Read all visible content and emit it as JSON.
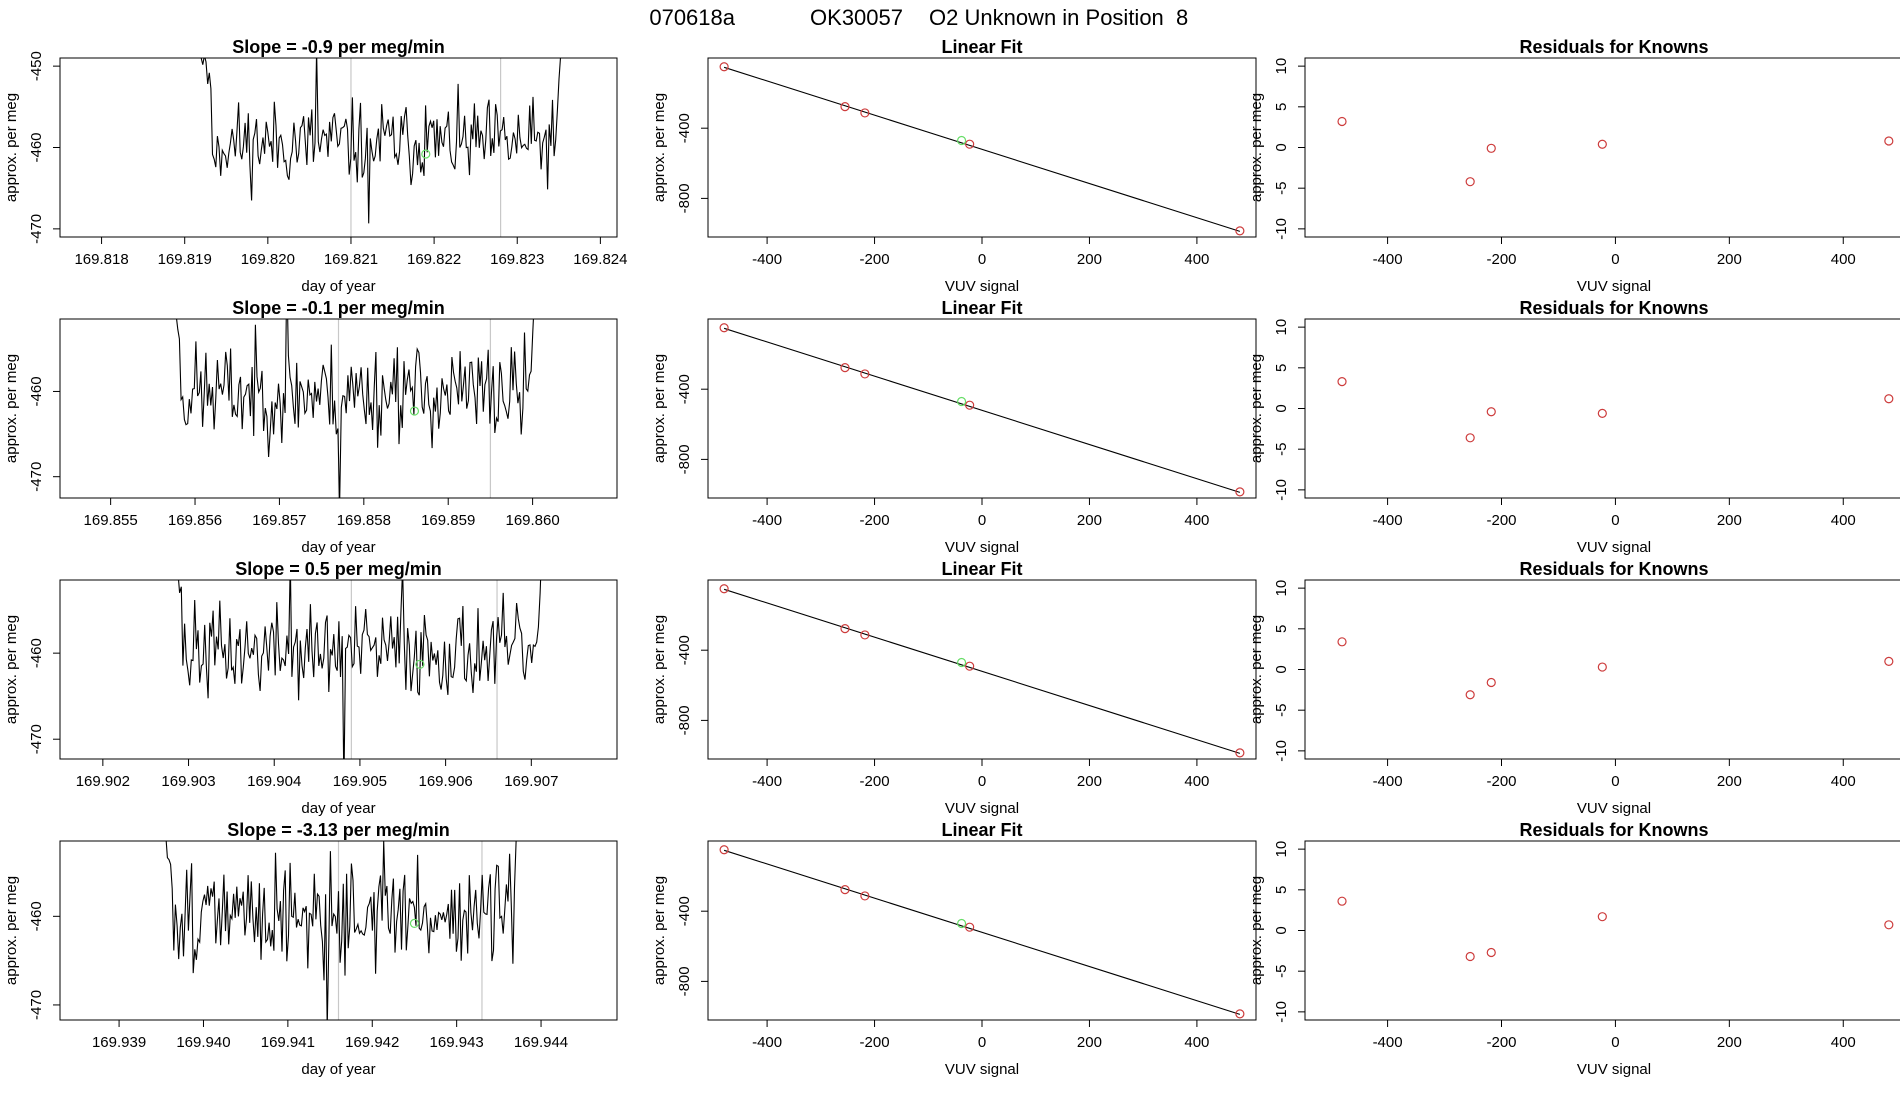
{
  "header": {
    "run_id": "070618a",
    "tank_id": "OK30057",
    "description": "O2 Unknown in Position  8"
  },
  "colors": {
    "trace": "#000000",
    "knowns": "#cd3c3c",
    "unknown": "#66dd66",
    "vline": "#c8c8c8"
  },
  "chart_data": [
    {
      "type": "line",
      "row": 0,
      "panel": "time-series",
      "title": "Slope =  -0.9  per meg/min",
      "xlabel": "day of year",
      "ylabel": "approx. per meg",
      "xlim": [
        169.8175,
        169.8242
      ],
      "ylim": [
        -471,
        -449
      ],
      "xticks": [
        169.818,
        169.819,
        169.82,
        169.821,
        169.822,
        169.823,
        169.824
      ],
      "xtick_labels": [
        "169.818",
        "169.819",
        "169.820",
        "169.821",
        "169.822",
        "169.823",
        "169.824"
      ],
      "yticks": [
        -450,
        -460,
        -470
      ],
      "ytick_labels": [
        "-450",
        "-460",
        "-470"
      ],
      "x_start": 169.8191,
      "x_end": 169.8236,
      "mean": -459.5,
      "noise": 3.2,
      "seed": 11,
      "vlines": [
        169.821,
        169.8228
      ],
      "unknown_point": {
        "x": 169.8219,
        "y": -460.8
      }
    },
    {
      "type": "line",
      "row": 1,
      "panel": "time-series",
      "title": "Slope =  -0.1  per meg/min",
      "xlabel": "day of year",
      "ylabel": "approx. per meg",
      "xlim": [
        169.8544,
        169.861
      ],
      "ylim": [
        -472.5,
        -451.5
      ],
      "xticks": [
        169.855,
        169.856,
        169.857,
        169.858,
        169.859,
        169.86
      ],
      "xtick_labels": [
        "169.855",
        "169.856",
        "169.857",
        "169.858",
        "169.859",
        "169.860"
      ],
      "yticks": [
        -460,
        -470
      ],
      "ytick_labels": [
        "-460",
        "-470"
      ],
      "x_start": 169.8556,
      "x_end": 169.8601,
      "mean": -460.2,
      "noise": 3.6,
      "seed": 23,
      "vlines": [
        169.8577,
        169.8595
      ],
      "unknown_point": {
        "x": 169.8586,
        "y": -462.3
      }
    },
    {
      "type": "line",
      "row": 2,
      "panel": "time-series",
      "title": "Slope =  0.5  per meg/min",
      "xlabel": "day of year",
      "ylabel": "approx. per meg",
      "xlim": [
        169.9015,
        169.908
      ],
      "ylim": [
        -472.3,
        -451.5
      ],
      "xticks": [
        169.902,
        169.903,
        169.904,
        169.905,
        169.906,
        169.907
      ],
      "xtick_labels": [
        "169.902",
        "169.903",
        "169.904",
        "169.905",
        "169.906",
        "169.907"
      ],
      "yticks": [
        -460,
        -470
      ],
      "ytick_labels": [
        "-460",
        "-470"
      ],
      "x_start": 169.9027,
      "x_end": 169.9072,
      "mean": -459.8,
      "noise": 3.3,
      "seed": 37,
      "vlines": [
        169.9049,
        169.9066
      ],
      "unknown_point": {
        "x": 169.9057,
        "y": -461.3
      }
    },
    {
      "type": "line",
      "row": 3,
      "panel": "time-series",
      "title": "Slope =  -3.13  per meg/min",
      "xlabel": "day of year",
      "ylabel": "approx. per meg",
      "xlim": [
        169.9383,
        169.9449
      ],
      "ylim": [
        -471.7,
        -451.5
      ],
      "xticks": [
        169.939,
        169.94,
        169.941,
        169.942,
        169.943,
        169.944
      ],
      "xtick_labels": [
        "169.939",
        "169.940",
        "169.941",
        "169.942",
        "169.943",
        "169.944"
      ],
      "yticks": [
        -460,
        -470
      ],
      "ytick_labels": [
        "-460",
        "-470"
      ],
      "x_start": 169.9394,
      "x_end": 169.9438,
      "mean": -459.8,
      "noise": 3.6,
      "seed": 51,
      "vlines": [
        169.9416,
        169.9433
      ],
      "unknown_point": {
        "x": 169.9425,
        "y": -460.8
      }
    },
    {
      "type": "scatter",
      "row": 0,
      "panel": "linear-fit",
      "title": "Linear Fit",
      "xlabel": "VUV signal",
      "ylabel": "approx. per meg",
      "xlim": [
        -510,
        510
      ],
      "ylim": [
        -1020,
        0
      ],
      "xticks": [
        -400,
        -200,
        0,
        200,
        400
      ],
      "xtick_labels": [
        "-400",
        "-200",
        "0",
        "200",
        "400"
      ],
      "yticks": [
        -400,
        -800
      ],
      "ytick_labels": [
        "-400",
        "-800"
      ],
      "fit_line": {
        "x": [
          -480,
          480
        ],
        "y": [
          -53,
          -988
        ]
      },
      "knowns": {
        "x": [
          -480,
          -255,
          -218,
          -23,
          480
        ],
        "y": [
          -50,
          -277,
          -313,
          -491,
          -985
        ]
      },
      "unknown": {
        "x": -38,
        "y": -470
      }
    },
    {
      "type": "scatter",
      "row": 1,
      "panel": "linear-fit",
      "title": "Linear Fit",
      "xlabel": "VUV signal",
      "ylabel": "approx. per meg",
      "xlim": [
        -510,
        510
      ],
      "ylim": [
        -1020,
        0
      ],
      "xticks": [
        -400,
        -200,
        0,
        200,
        400
      ],
      "xtick_labels": [
        "-400",
        "-200",
        "0",
        "200",
        "400"
      ],
      "yticks": [
        -400,
        -800
      ],
      "ytick_labels": [
        "-400",
        "-800"
      ],
      "fit_line": {
        "x": [
          -480,
          480
        ],
        "y": [
          -53,
          -988
        ]
      },
      "knowns": {
        "x": [
          -480,
          -255,
          -218,
          -23,
          480
        ],
        "y": [
          -50,
          -277,
          -313,
          -491,
          -985
        ]
      },
      "unknown": {
        "x": -38,
        "y": -470
      }
    },
    {
      "type": "scatter",
      "row": 2,
      "panel": "linear-fit",
      "title": "Linear Fit",
      "xlabel": "VUV signal",
      "ylabel": "approx. per meg",
      "xlim": [
        -510,
        510
      ],
      "ylim": [
        -1020,
        0
      ],
      "xticks": [
        -400,
        -200,
        0,
        200,
        400
      ],
      "xtick_labels": [
        "-400",
        "-200",
        "0",
        "200",
        "400"
      ],
      "yticks": [
        -400,
        -800
      ],
      "ytick_labels": [
        "-400",
        "-800"
      ],
      "fit_line": {
        "x": [
          -480,
          480
        ],
        "y": [
          -53,
          -988
        ]
      },
      "knowns": {
        "x": [
          -480,
          -255,
          -218,
          -23,
          480
        ],
        "y": [
          -50,
          -277,
          -313,
          -491,
          -985
        ]
      },
      "unknown": {
        "x": -38,
        "y": -470
      }
    },
    {
      "type": "scatter",
      "row": 3,
      "panel": "linear-fit",
      "title": "Linear Fit",
      "xlabel": "VUV signal",
      "ylabel": "approx. per meg",
      "xlim": [
        -510,
        510
      ],
      "ylim": [
        -1020,
        0
      ],
      "xticks": [
        -400,
        -200,
        0,
        200,
        400
      ],
      "xtick_labels": [
        "-400",
        "-200",
        "0",
        "200",
        "400"
      ],
      "yticks": [
        -400,
        -800
      ],
      "ytick_labels": [
        "-400",
        "-800"
      ],
      "fit_line": {
        "x": [
          -480,
          480
        ],
        "y": [
          -53,
          -988
        ]
      },
      "knowns": {
        "x": [
          -480,
          -255,
          -218,
          -23,
          480
        ],
        "y": [
          -50,
          -277,
          -313,
          -491,
          -985
        ]
      },
      "unknown": {
        "x": -38,
        "y": -470
      }
    },
    {
      "type": "scatter",
      "row": 0,
      "panel": "residuals",
      "title": "Residuals for Knowns",
      "xlabel": "VUV signal",
      "ylabel": "approx. per meg",
      "xlim": [
        -545,
        540
      ],
      "ylim": [
        -11,
        11
      ],
      "xticks": [
        -400,
        -200,
        0,
        200,
        400
      ],
      "xtick_labels": [
        "-400",
        "-200",
        "0",
        "200",
        "400"
      ],
      "yticks": [
        10,
        5,
        0,
        -5,
        -10
      ],
      "ytick_labels": [
        "10",
        "5",
        "0",
        "-5",
        "-10"
      ],
      "x": [
        -480,
        -255,
        -218,
        -23,
        480
      ],
      "y": [
        3.2,
        -4.2,
        -0.1,
        0.4,
        0.8
      ]
    },
    {
      "type": "scatter",
      "row": 1,
      "panel": "residuals",
      "title": "Residuals for Knowns",
      "xlabel": "VUV signal",
      "ylabel": "approx. per meg",
      "xlim": [
        -545,
        540
      ],
      "ylim": [
        -11,
        11
      ],
      "xticks": [
        -400,
        -200,
        0,
        200,
        400
      ],
      "xtick_labels": [
        "-400",
        "-200",
        "0",
        "200",
        "400"
      ],
      "yticks": [
        10,
        5,
        0,
        -5,
        -10
      ],
      "ytick_labels": [
        "10",
        "5",
        "0",
        "-5",
        "-10"
      ],
      "x": [
        -480,
        -255,
        -218,
        -23,
        480
      ],
      "y": [
        3.3,
        -3.6,
        -0.4,
        -0.6,
        1.2
      ]
    },
    {
      "type": "scatter",
      "row": 2,
      "panel": "residuals",
      "title": "Residuals for Knowns",
      "xlabel": "VUV signal",
      "ylabel": "approx. per meg",
      "xlim": [
        -545,
        540
      ],
      "ylim": [
        -11,
        11
      ],
      "xticks": [
        -400,
        -200,
        0,
        200,
        400
      ],
      "xtick_labels": [
        "-400",
        "-200",
        "0",
        "200",
        "400"
      ],
      "yticks": [
        10,
        5,
        0,
        -5,
        -10
      ],
      "ytick_labels": [
        "10",
        "5",
        "0",
        "-5",
        "-10"
      ],
      "x": [
        -480,
        -255,
        -218,
        -23,
        480
      ],
      "y": [
        3.4,
        -3.1,
        -1.6,
        0.3,
        1.0
      ]
    },
    {
      "type": "scatter",
      "row": 3,
      "panel": "residuals",
      "title": "Residuals for Knowns",
      "xlabel": "VUV signal",
      "ylabel": "approx. per meg",
      "xlim": [
        -545,
        540
      ],
      "ylim": [
        -11,
        11
      ],
      "xticks": [
        -400,
        -200,
        0,
        200,
        400
      ],
      "xtick_labels": [
        "-400",
        "-200",
        "0",
        "200",
        "400"
      ],
      "yticks": [
        10,
        5,
        0,
        -5,
        -10
      ],
      "ytick_labels": [
        "10",
        "5",
        "0",
        "-5",
        "-10"
      ],
      "x": [
        -480,
        -255,
        -218,
        -23,
        480
      ],
      "y": [
        3.6,
        -3.2,
        -2.7,
        1.7,
        0.7
      ]
    }
  ]
}
